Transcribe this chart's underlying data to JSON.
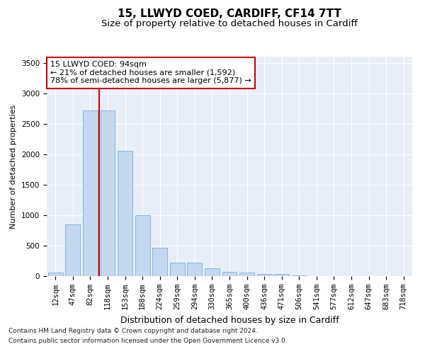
{
  "title1": "15, LLWYD COED, CARDIFF, CF14 7TT",
  "title2": "Size of property relative to detached houses in Cardiff",
  "xlabel": "Distribution of detached houses by size in Cardiff",
  "ylabel": "Number of detached properties",
  "categories": [
    "12sqm",
    "47sqm",
    "82sqm",
    "118sqm",
    "153sqm",
    "188sqm",
    "224sqm",
    "259sqm",
    "294sqm",
    "330sqm",
    "365sqm",
    "400sqm",
    "436sqm",
    "471sqm",
    "506sqm",
    "541sqm",
    "577sqm",
    "612sqm",
    "647sqm",
    "683sqm",
    "718sqm"
  ],
  "values": [
    55,
    850,
    2720,
    2720,
    2060,
    1000,
    460,
    220,
    215,
    130,
    65,
    55,
    35,
    30,
    10,
    5,
    5,
    5,
    5,
    5,
    0
  ],
  "bar_color": "#c5d8f0",
  "bar_edgecolor": "#7aadd4",
  "vline_color": "#cc0000",
  "vline_x_index": 2.5,
  "annotation_text": "15 LLWYD COED: 94sqm\n← 21% of detached houses are smaller (1,592)\n78% of semi-detached houses are larger (5,877) →",
  "annotation_box_facecolor": "white",
  "annotation_box_edgecolor": "#cc0000",
  "ylim": [
    0,
    3600
  ],
  "yticks": [
    0,
    500,
    1000,
    1500,
    2000,
    2500,
    3000,
    3500
  ],
  "footnote1": "Contains HM Land Registry data © Crown copyright and database right 2024.",
  "footnote2": "Contains public sector information licensed under the Open Government Licence v3.0.",
  "background_color": "#e8eef8",
  "grid_color": "#ffffff",
  "title1_fontsize": 11,
  "title2_fontsize": 9.5,
  "xlabel_fontsize": 9,
  "ylabel_fontsize": 8,
  "tick_fontsize": 7.5,
  "annotation_fontsize": 8,
  "footnote_fontsize": 6.5
}
